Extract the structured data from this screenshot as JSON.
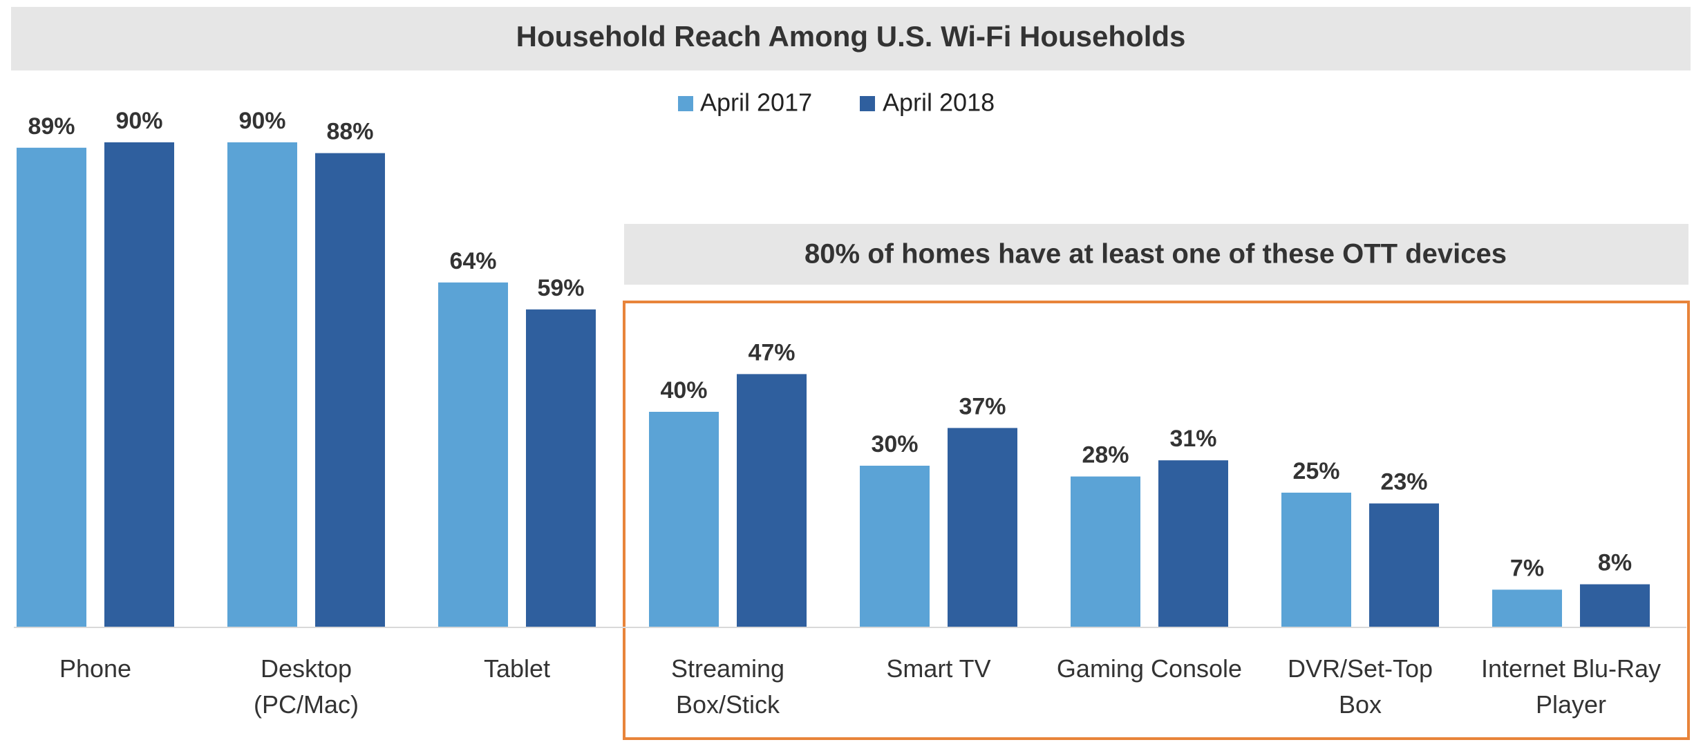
{
  "chart_data": {
    "type": "bar",
    "title": "Household Reach Among U.S. Wi-Fi Households",
    "callout": "80% of homes have at least one of these OTT devices",
    "categories": [
      [
        "Phone"
      ],
      [
        "Desktop",
        "(PC/Mac)"
      ],
      [
        "Tablet"
      ],
      [
        "Streaming",
        "Box/Stick"
      ],
      [
        "Smart TV"
      ],
      [
        "Gaming Console"
      ],
      [
        "DVR/Set-Top",
        "Box"
      ],
      [
        "Internet Blu-Ray",
        "Player"
      ]
    ],
    "series": [
      {
        "name": "April 2017",
        "color": "#5BA3D6",
        "values": [
          89,
          90,
          64,
          40,
          30,
          28,
          25,
          7
        ]
      },
      {
        "name": "April 2018",
        "color": "#2F5F9E",
        "values": [
          90,
          88,
          59,
          47,
          37,
          31,
          23,
          8
        ]
      }
    ],
    "value_suffix": "%",
    "ylim": [
      0,
      100
    ],
    "legend_position": "top-center",
    "highlight_color": "#E8843A",
    "banner_color": "#E6E6E6"
  }
}
